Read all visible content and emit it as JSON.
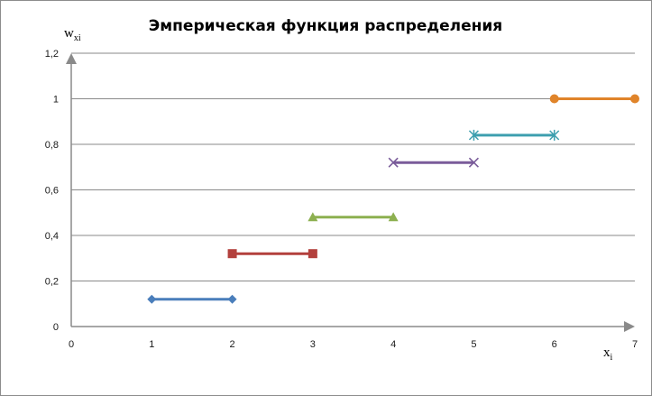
{
  "chart_data": {
    "type": "line",
    "title": "Эмперическая функция распределения",
    "xlabel": {
      "main": "x",
      "sub": "i"
    },
    "ylabel": {
      "main": "w",
      "sub": "xi"
    },
    "xlim": [
      0,
      7
    ],
    "ylim": [
      0,
      1.2
    ],
    "x_ticks": [
      "0",
      "1",
      "2",
      "3",
      "4",
      "5",
      "6",
      "7"
    ],
    "y_ticks": [
      "0",
      "0,2",
      "0,4",
      "0,6",
      "0,8",
      "1",
      "1,2"
    ],
    "grid": true,
    "series": [
      {
        "color": "#4a7ebb",
        "marker": "diamond",
        "x": [
          1,
          2
        ],
        "y": [
          0.12,
          0.12
        ]
      },
      {
        "color": "#b3403d",
        "marker": "square",
        "x": [
          2,
          3
        ],
        "y": [
          0.32,
          0.32
        ]
      },
      {
        "color": "#8db050",
        "marker": "triangle",
        "x": [
          3,
          4
        ],
        "y": [
          0.48,
          0.48
        ]
      },
      {
        "color": "#7a5c9a",
        "marker": "x",
        "x": [
          4,
          5
        ],
        "y": [
          0.72,
          0.72
        ]
      },
      {
        "color": "#3e9faf",
        "marker": "star",
        "x": [
          5,
          6
        ],
        "y": [
          0.84,
          0.84
        ]
      },
      {
        "color": "#e0842a",
        "marker": "circle",
        "x": [
          6,
          7
        ],
        "y": [
          1.0,
          1.0
        ]
      }
    ]
  }
}
